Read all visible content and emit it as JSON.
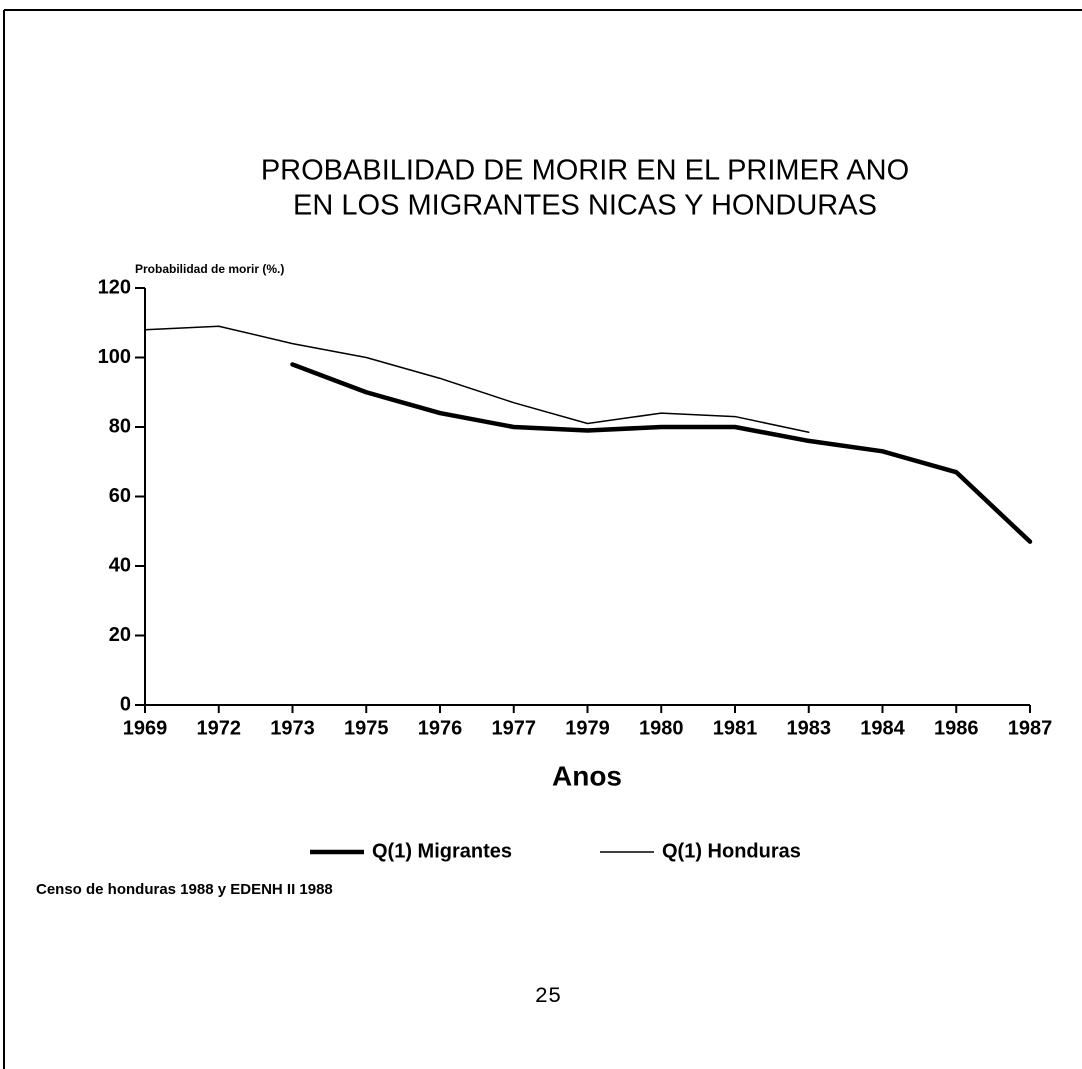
{
  "chart_data": {
    "type": "line",
    "title": [
      "PROBABILIDAD DE MORIR EN EL PRIMER ANO",
      "EN LOS MIGRANTES NICAS Y HONDURAS"
    ],
    "y_label": "Probabilidad de morir (%.)",
    "x_label": "Anos",
    "categories": [
      "1969",
      "1972",
      "1973",
      "1975",
      "1976",
      "1977",
      "1979",
      "1980",
      "1981",
      "1983",
      "1984",
      "1986",
      "1987"
    ],
    "series": [
      {
        "name": "Q(1) Migrantes",
        "color": "#000000",
        "values": [
          null,
          null,
          98,
          90,
          84,
          80,
          79,
          80,
          80,
          76,
          73,
          67,
          47
        ]
      },
      {
        "name": "Q(1) Honduras",
        "color": "#000000",
        "values": [
          108,
          109,
          104,
          100,
          94,
          87,
          81,
          84,
          83,
          78.5,
          null,
          null,
          null
        ]
      }
    ],
    "ylim": [
      0,
      120
    ],
    "yticks": [
      0,
      20,
      40,
      60,
      80,
      100,
      120
    ],
    "legend": "bottom",
    "source": "Censo de honduras 1988 y EDENH II 1988",
    "page_number": "25"
  }
}
